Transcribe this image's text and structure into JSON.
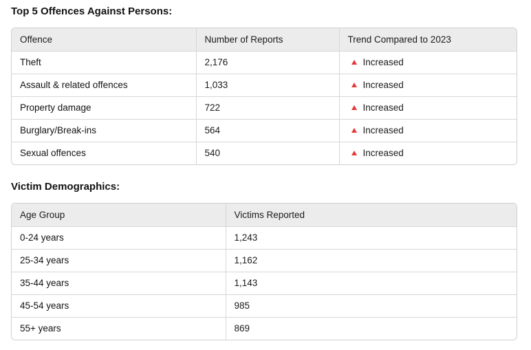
{
  "section1": {
    "title": "Top 5 Offences Against Persons:",
    "columns": [
      "Offence",
      "Number of Reports",
      "Trend Compared to 2023"
    ],
    "rows": [
      {
        "offence": "Theft",
        "reports": "2,176",
        "trend": "Increased",
        "trend_icon": "up-triangle-icon",
        "trend_color": "#e53935"
      },
      {
        "offence": "Assault & related offences",
        "reports": "1,033",
        "trend": "Increased",
        "trend_icon": "up-triangle-icon",
        "trend_color": "#e53935"
      },
      {
        "offence": "Property damage",
        "reports": "722",
        "trend": "Increased",
        "trend_icon": "up-triangle-icon",
        "trend_color": "#e53935"
      },
      {
        "offence": "Burglary/Break-ins",
        "reports": "564",
        "trend": "Increased",
        "trend_icon": "up-triangle-icon",
        "trend_color": "#e53935"
      },
      {
        "offence": "Sexual offences",
        "reports": "540",
        "trend": "Increased",
        "trend_icon": "up-triangle-icon",
        "trend_color": "#e53935"
      }
    ]
  },
  "section2": {
    "title": "Victim Demographics:",
    "columns": [
      "Age Group",
      "Victims Reported"
    ],
    "rows": [
      {
        "age_group": "0-24 years",
        "victims": "1,243"
      },
      {
        "age_group": "25-34 years",
        "victims": "1,162"
      },
      {
        "age_group": "35-44 years",
        "victims": "1,143"
      },
      {
        "age_group": "45-54 years",
        "victims": "985"
      },
      {
        "age_group": "55+ years",
        "victims": "869"
      }
    ]
  }
}
